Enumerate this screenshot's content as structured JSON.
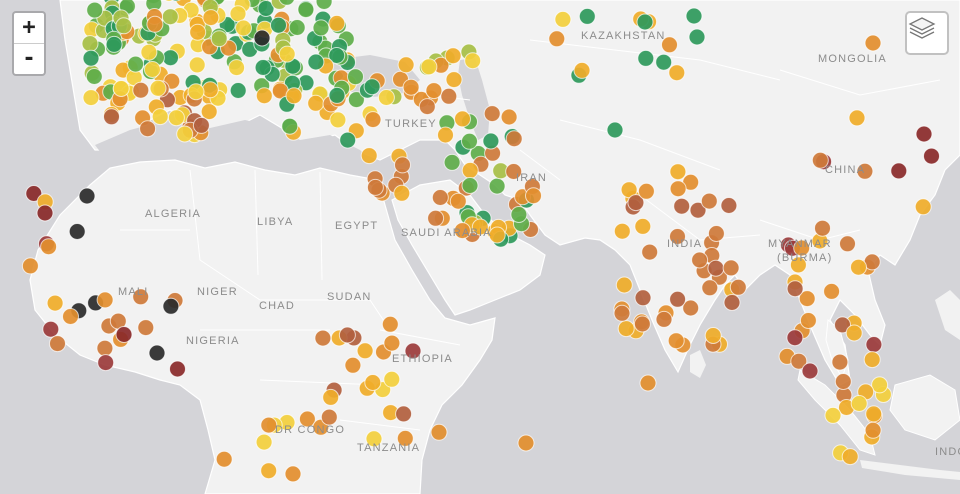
{
  "controls": {
    "zoom_in": "+",
    "zoom_out": "-"
  },
  "map_labels": [
    {
      "key": "kazakhstan",
      "text": "KAZAKHSTAN"
    },
    {
      "key": "mongolia",
      "text": "MONGOLIA"
    },
    {
      "key": "turkey",
      "text": "TURKEY"
    },
    {
      "key": "china",
      "text": "CHINA"
    },
    {
      "key": "iran",
      "text": "IRAN"
    },
    {
      "key": "algeria",
      "text": "ALGERIA"
    },
    {
      "key": "libya",
      "text": "LIBYA"
    },
    {
      "key": "egypt",
      "text": "EGYPT"
    },
    {
      "key": "saudi_arabia",
      "text": "SAUDI ARABIA"
    },
    {
      "key": "india",
      "text": "INDIA"
    },
    {
      "key": "myanmar",
      "text": "MYANMAR"
    },
    {
      "key": "burma",
      "text": "(BURMA)"
    },
    {
      "key": "mali",
      "text": "MALI"
    },
    {
      "key": "niger",
      "text": "NIGER"
    },
    {
      "key": "chad",
      "text": "CHAD"
    },
    {
      "key": "sudan",
      "text": "SUDAN"
    },
    {
      "key": "nigeria",
      "text": "NIGERIA"
    },
    {
      "key": "ethiopia",
      "text": "ETHIOPIA"
    },
    {
      "key": "dr_congo",
      "text": "DR CONGO"
    },
    {
      "key": "tanzania",
      "text": "TANZANIA"
    },
    {
      "key": "indonesia",
      "text": "INDO"
    }
  ],
  "colors": {
    "water": "#d4d4d8",
    "land": "#f2f2f2",
    "marker_palette": [
      "#2e9a5c",
      "#5fae4a",
      "#a8c046",
      "#f4d03c",
      "#f0ad2a",
      "#e38f2e",
      "#cf7a3a",
      "#b2603f",
      "#9c3b3b",
      "#8a2a2a",
      "#2b2b2b"
    ]
  },
  "icons": {
    "layers": "layers-icon"
  }
}
